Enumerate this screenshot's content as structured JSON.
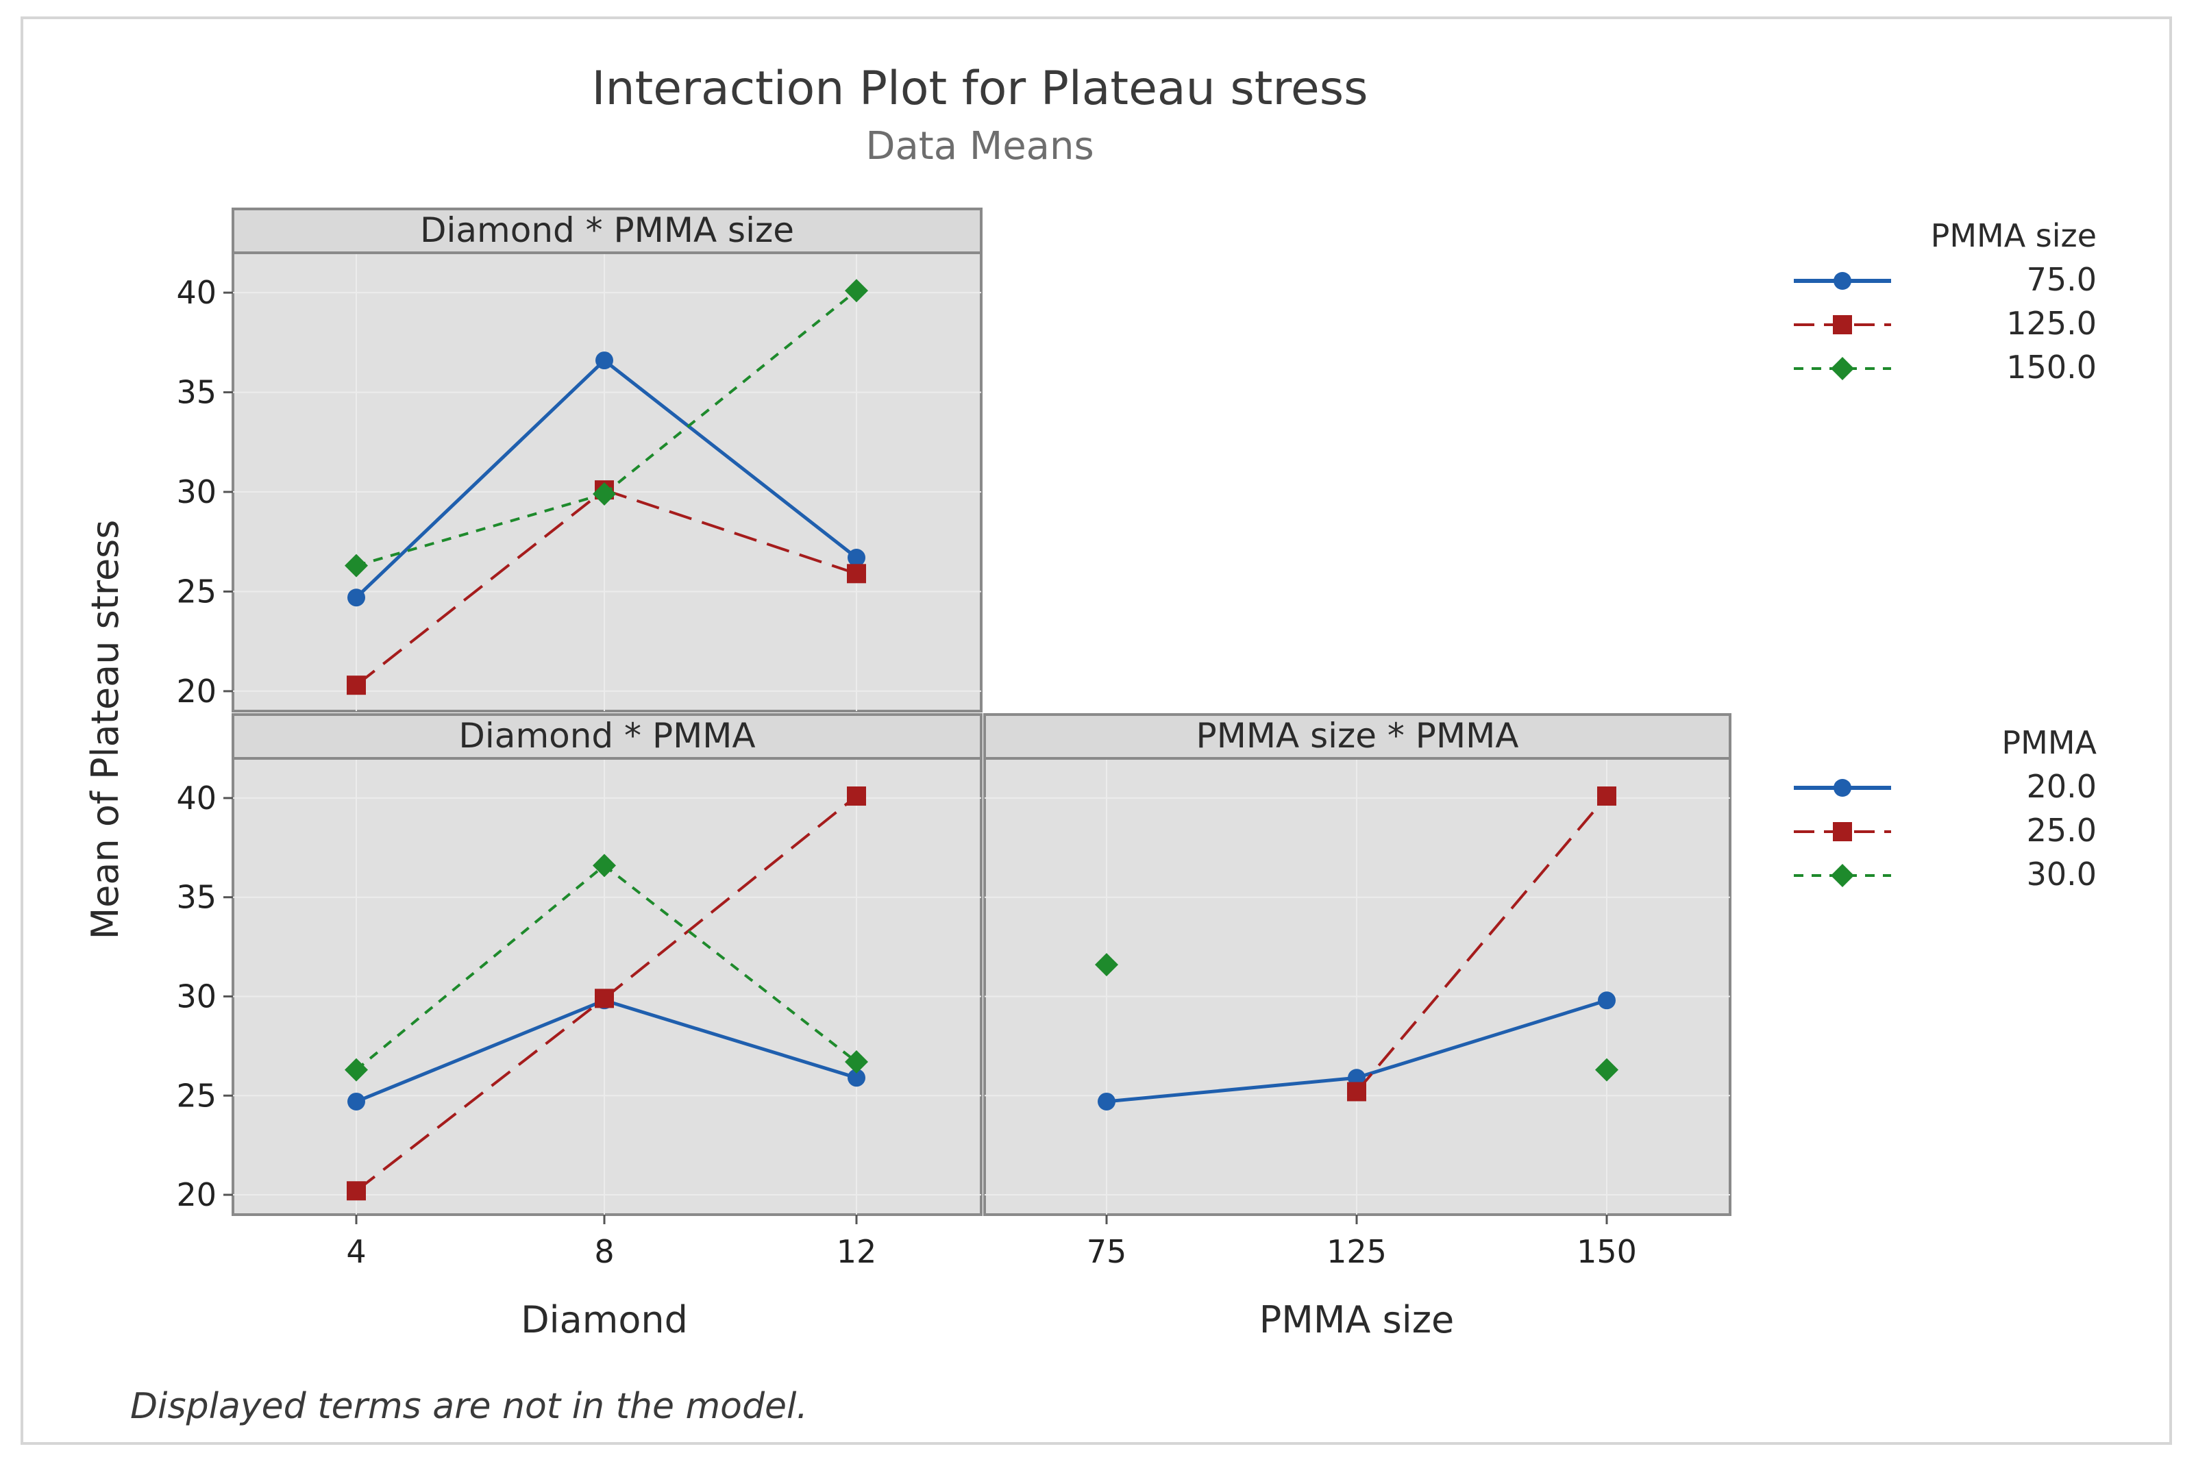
{
  "chart_data": {
    "type": "line",
    "title": "Interaction Plot for Plateau stress",
    "subtitle": "Data Means",
    "ylabel": "Mean of Plateau stress",
    "ylim": [
      19,
      42
    ],
    "yticks": [
      20,
      25,
      30,
      35,
      40
    ],
    "footnote": "Displayed terms are not in the model.",
    "colors": {
      "blue": "#1f5fae",
      "red": "#a51c1c",
      "green": "#1e8a2c",
      "panel": "#e0e0e0",
      "strip": "#d9d9d9"
    },
    "xaxes": [
      {
        "label": "Diamond",
        "categories": [
          "4",
          "8",
          "12"
        ]
      },
      {
        "label": "PMMA size",
        "categories": [
          "75",
          "125",
          "150"
        ]
      }
    ],
    "legends": [
      {
        "title": "PMMA size",
        "entries": [
          "75.0",
          "125.0",
          "150.0"
        ]
      },
      {
        "title": "PMMA",
        "entries": [
          "20.0",
          "25.0",
          "30.0"
        ]
      }
    ],
    "panels": [
      {
        "strip": "Diamond * PMMA size",
        "xlabel": "Diamond",
        "categories": [
          "4",
          "8",
          "12"
        ],
        "series": [
          {
            "name": "75.0",
            "values": [
              24.7,
              36.6,
              26.7
            ]
          },
          {
            "name": "125.0",
            "values": [
              20.3,
              30.1,
              25.9
            ]
          },
          {
            "name": "150.0",
            "values": [
              26.3,
              29.9,
              40.1
            ]
          }
        ]
      },
      {
        "strip": "Diamond * PMMA",
        "xlabel": "Diamond",
        "categories": [
          "4",
          "8",
          "12"
        ],
        "series": [
          {
            "name": "20.0",
            "values": [
              24.7,
              29.8,
              25.9
            ]
          },
          {
            "name": "25.0",
            "values": [
              20.2,
              29.9,
              40.1
            ]
          },
          {
            "name": "30.0",
            "values": [
              26.3,
              36.6,
              26.7
            ]
          }
        ]
      },
      {
        "strip": "PMMA size * PMMA",
        "xlabel": "PMMA size",
        "categories": [
          "75",
          "125",
          "150"
        ],
        "series": [
          {
            "name": "20.0",
            "values": [
              24.7,
              25.9,
              29.8
            ]
          },
          {
            "name": "25.0",
            "values": [
              null,
              25.2,
              40.1
            ]
          },
          {
            "name": "30.0",
            "values": [
              31.6,
              null,
              26.3
            ]
          }
        ]
      }
    ]
  }
}
